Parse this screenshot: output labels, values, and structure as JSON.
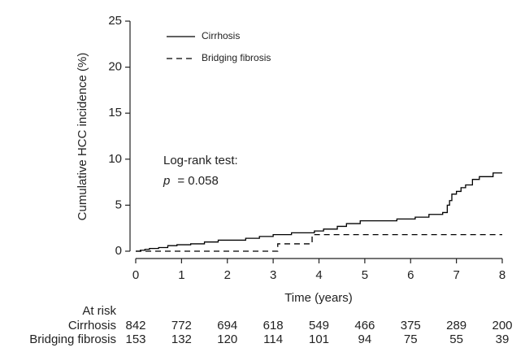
{
  "chart_data": {
    "type": "step",
    "y_label": "Cumulative HCC incidence (%)",
    "x_label": "Time (years)",
    "xlim": [
      0,
      8
    ],
    "xticks": [
      0,
      1,
      2,
      3,
      4,
      5,
      6,
      7,
      8
    ],
    "ylim": [
      0,
      25
    ],
    "yticks": [
      0,
      5,
      10,
      15,
      20,
      25
    ],
    "legend": "upper left",
    "series": [
      {
        "name": "Cirrhosis",
        "color": "#000000",
        "dash": "solid",
        "x": [
          0,
          0.1,
          0.2,
          0.3,
          0.5,
          0.7,
          0.9,
          1.2,
          1.5,
          1.8,
          2.4,
          2.7,
          3.0,
          3.4,
          3.9,
          4.1,
          4.4,
          4.6,
          4.9,
          5.7,
          6.1,
          6.4,
          6.7,
          6.8,
          6.85,
          6.9,
          7.0,
          7.1,
          7.2,
          7.35,
          7.5,
          7.8,
          8.0
        ],
        "values": [
          0,
          0.1,
          0.2,
          0.3,
          0.4,
          0.6,
          0.7,
          0.8,
          1.0,
          1.2,
          1.4,
          1.6,
          1.8,
          2.0,
          2.2,
          2.4,
          2.7,
          3.0,
          3.3,
          3.5,
          3.7,
          4.0,
          4.2,
          5.0,
          5.5,
          6.2,
          6.5,
          6.9,
          7.2,
          7.8,
          8.1,
          8.5,
          8.5
        ]
      },
      {
        "name": "Bridging fibrosis",
        "color": "#000000",
        "dash": "dashed",
        "x": [
          0,
          3.1,
          3.85,
          8.0
        ],
        "values": [
          0,
          0.8,
          1.8,
          1.8
        ]
      }
    ],
    "annotation": {
      "label": "Log-rank test:",
      "p_symbol": "p",
      "p_value": "= 0.058"
    },
    "at_risk": {
      "title": "At risk",
      "rows": [
        {
          "name": "Cirrhosis",
          "values": [
            842,
            772,
            694,
            618,
            549,
            466,
            375,
            289,
            200
          ]
        },
        {
          "name": "Bridging fibrosis",
          "values": [
            153,
            132,
            120,
            114,
            101,
            94,
            75,
            55,
            39
          ]
        }
      ]
    }
  }
}
